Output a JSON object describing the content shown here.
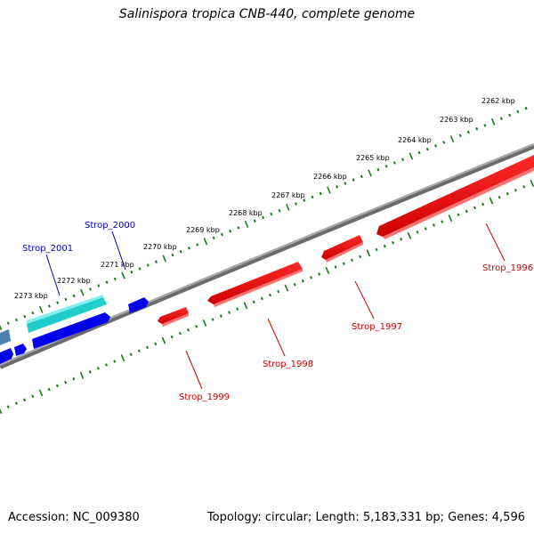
{
  "title": "Salinispora tropica CNB-440, complete genome",
  "footer": {
    "accession": "Accession: NC_009380",
    "summary": "Topology: circular; Length: 5,183,331 bp; Genes: 4,596"
  },
  "colors": {
    "backbone": "#808080",
    "reverse_gene": "#ff0000",
    "forward_gene": "#0000ee",
    "forward_gene_alt": "#22cccc",
    "forward_gene_partial": "#4a7fb0",
    "tick": "#1a7a1a",
    "label_forward": "#0000cc",
    "label_reverse": "#cc0000"
  },
  "kbp_labels": [
    "2262 kbp",
    "2263 kbp",
    "2264 kbp",
    "2265 kbp",
    "2266 kbp",
    "2267 kbp",
    "2268 kbp",
    "2269 kbp",
    "2270 kbp",
    "2271 kbp",
    "2272 kbp",
    "2273 kbp"
  ],
  "gene_labels": {
    "forward": [
      "Strop_2000",
      "Strop_2001"
    ],
    "reverse": [
      "Strop_1996",
      "Strop_1997",
      "Strop_1998",
      "Strop_1999"
    ]
  }
}
